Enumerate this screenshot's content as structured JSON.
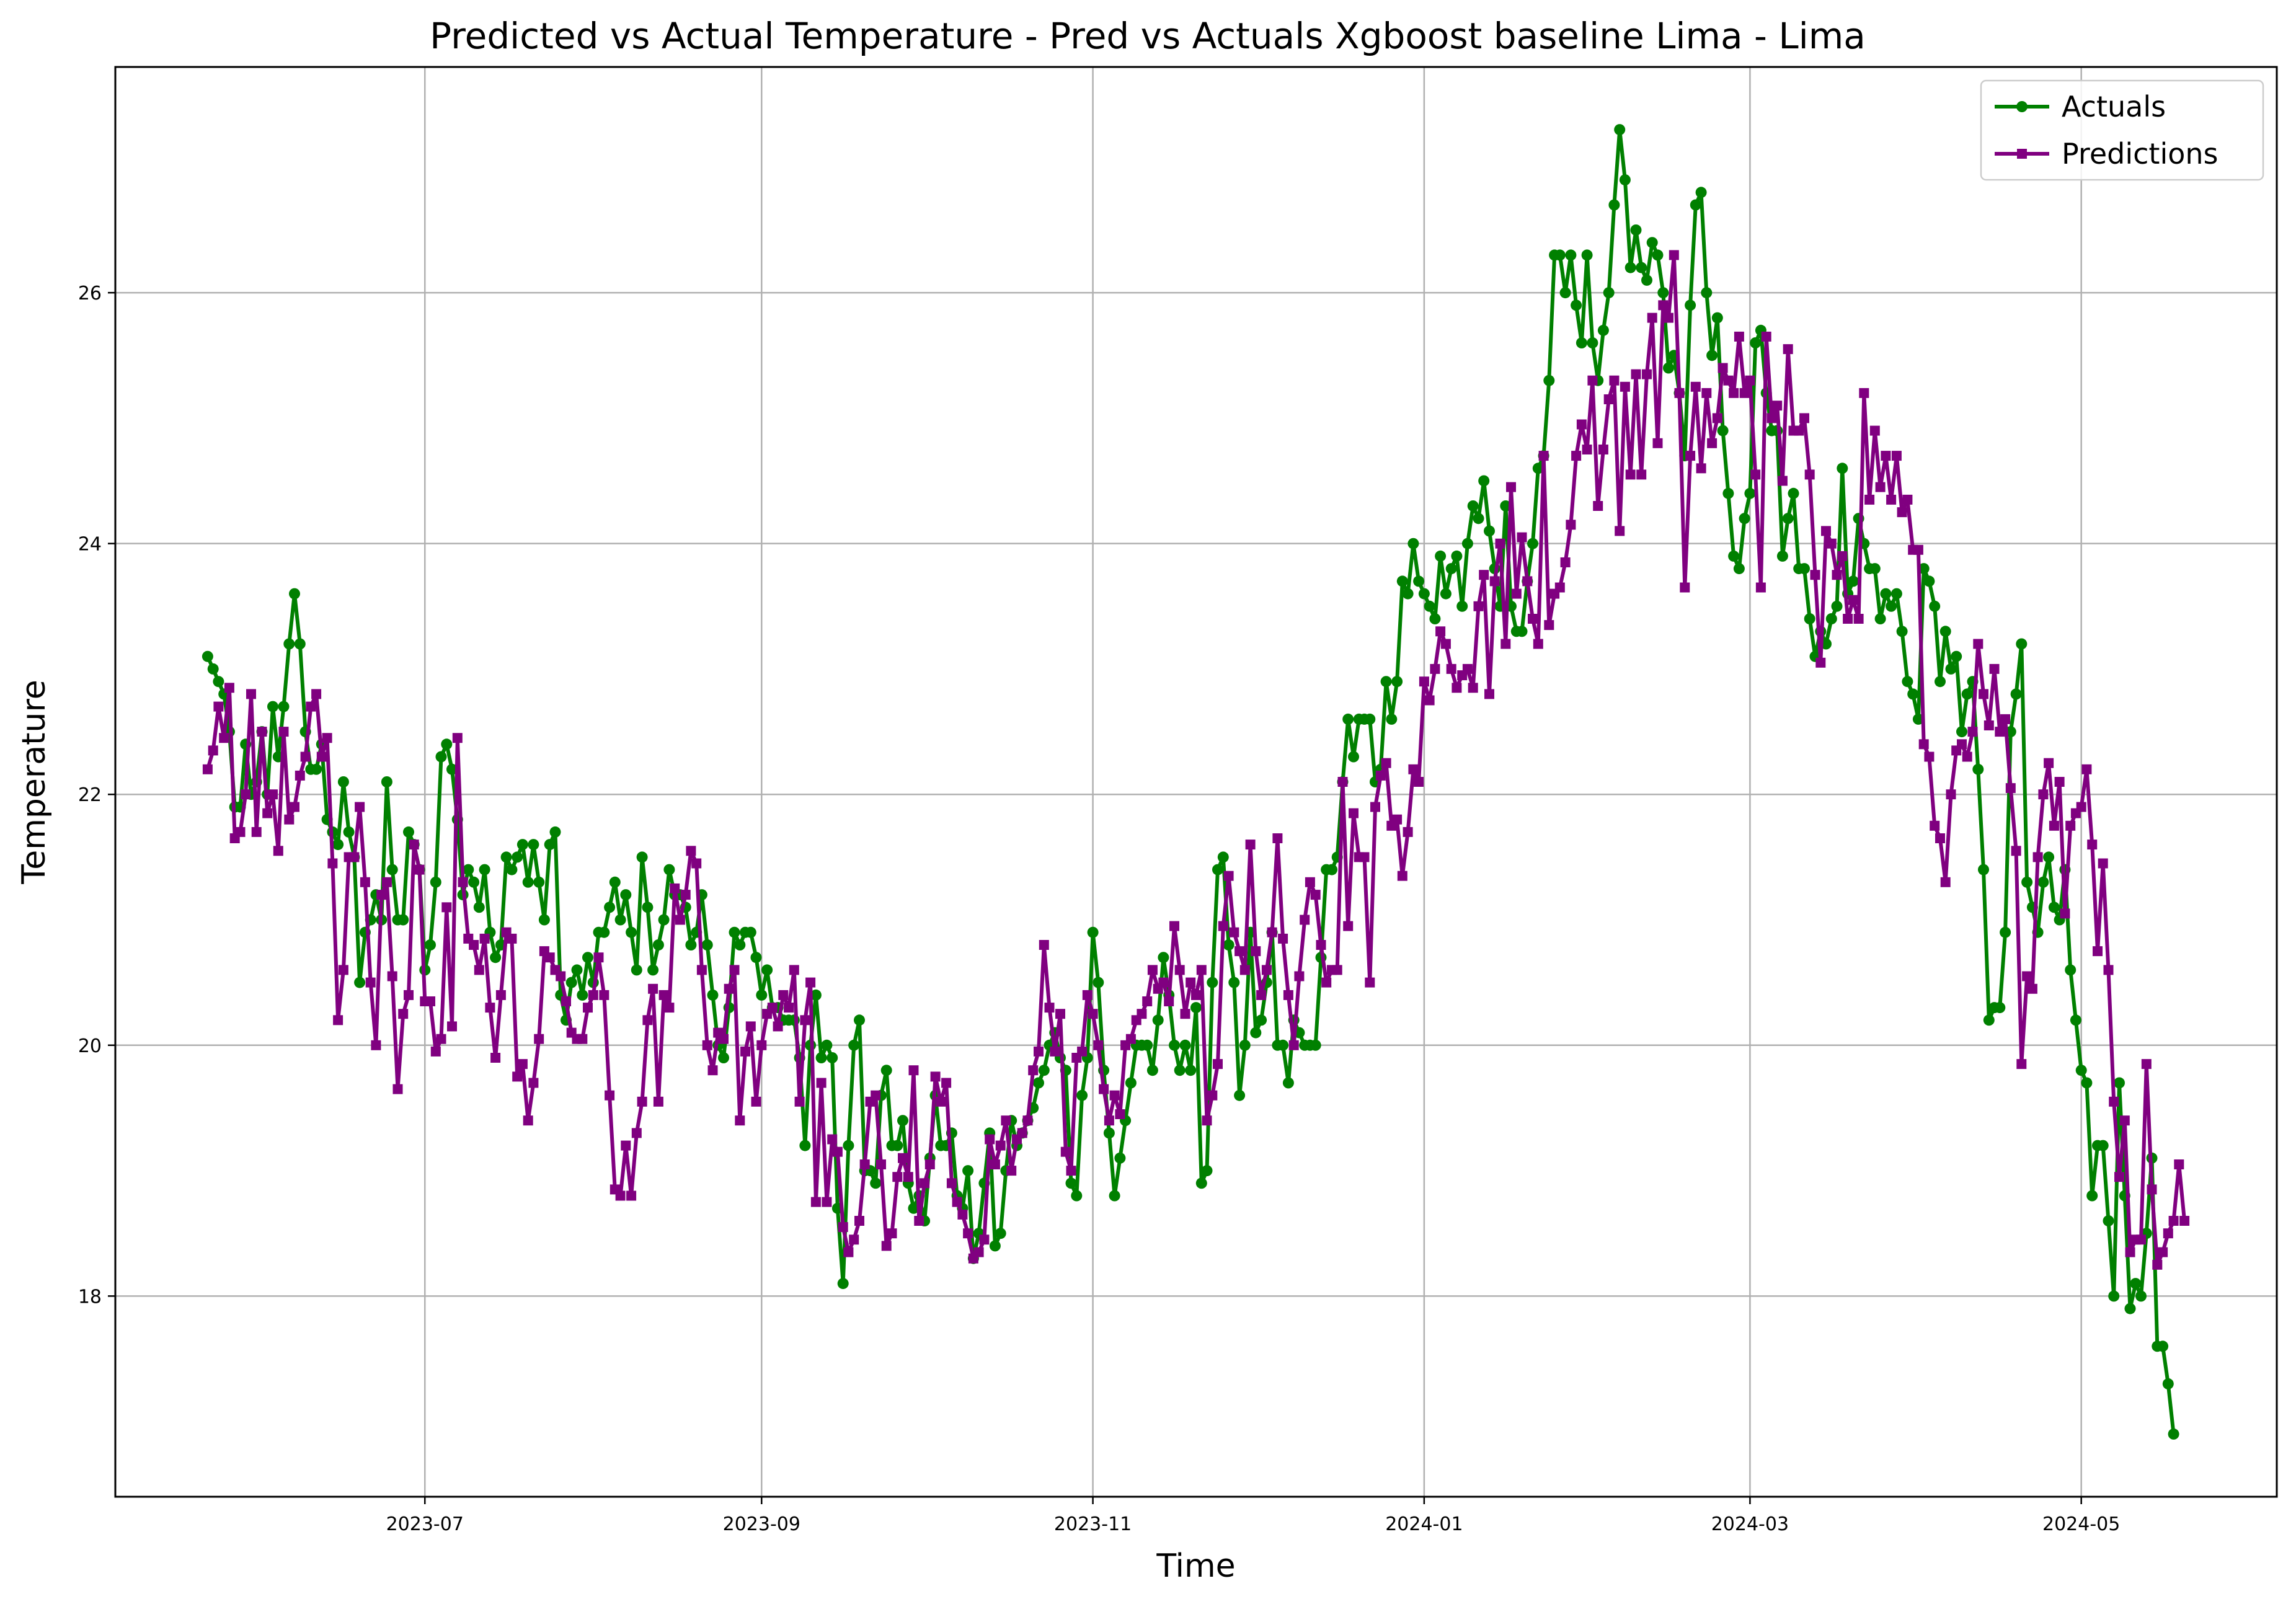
{
  "chart_data": {
    "type": "line",
    "title": "Predicted vs Actual Temperature - Pred vs Actuals Xgboost baseline Lima - Lima",
    "xlabel": "Time",
    "ylabel": "Temperature",
    "x_start": "2023-05-22",
    "x_end": "2024-05-20",
    "xlim": [
      "2023-05-05",
      "2024-06-06"
    ],
    "ylim": [
      16.4,
      27.8
    ],
    "x_ticks": [
      "2023-07",
      "2023-09",
      "2023-11",
      "2024-01",
      "2024-03",
      "2024-05"
    ],
    "y_ticks": [
      18,
      20,
      22,
      24,
      26
    ],
    "grid": true,
    "legend_position": "top-right",
    "series": [
      {
        "name": "Actuals",
        "color": "#008000",
        "marker": "circle",
        "values": [
          23.1,
          23.0,
          22.9,
          22.8,
          22.5,
          21.9,
          21.9,
          22.4,
          22.0,
          22.1,
          22.5,
          22.0,
          22.7,
          22.3,
          22.7,
          23.2,
          23.6,
          23.2,
          22.5,
          22.2,
          22.2,
          22.4,
          21.8,
          21.7,
          21.6,
          22.1,
          21.7,
          21.5,
          20.5,
          20.9,
          21.0,
          21.2,
          21.0,
          22.1,
          21.4,
          21.0,
          21.0,
          21.7,
          21.6,
          21.4,
          20.6,
          20.8,
          21.3,
          22.3,
          22.4,
          22.2,
          21.8,
          21.2,
          21.4,
          21.3,
          21.1,
          21.4,
          20.9,
          20.7,
          20.8,
          21.5,
          21.4,
          21.5,
          21.6,
          21.3,
          21.6,
          21.3,
          21.0,
          21.6,
          21.7,
          20.4,
          20.2,
          20.5,
          20.6,
          20.4,
          20.7,
          20.5,
          20.9,
          20.9,
          21.1,
          21.3,
          21.0,
          21.2,
          20.9,
          20.6,
          21.5,
          21.1,
          20.6,
          20.8,
          21.0,
          21.4,
          21.2,
          21.2,
          21.1,
          20.8,
          20.9,
          21.2,
          20.8,
          20.4,
          20.0,
          19.9,
          20.3,
          20.9,
          20.8,
          20.9,
          20.9,
          20.7,
          20.4,
          20.6,
          20.3,
          20.3,
          20.2,
          20.2,
          20.2,
          19.9,
          19.2,
          20.0,
          20.4,
          19.9,
          20.0,
          19.9,
          18.7,
          18.1,
          19.2,
          20.0,
          20.2,
          19.0,
          19.0,
          18.9,
          19.6,
          19.8,
          19.2,
          19.2,
          19.4,
          18.9,
          18.7,
          18.8,
          18.6,
          19.1,
          19.6,
          19.2,
          19.2,
          19.3,
          18.8,
          18.7,
          19.0,
          18.3,
          18.5,
          18.9,
          19.3,
          18.4,
          18.5,
          19.0,
          19.4,
          19.2,
          19.3,
          19.4,
          19.5,
          19.7,
          19.8,
          20.0,
          20.1,
          19.9,
          19.8,
          18.9,
          18.8,
          19.6,
          19.9,
          20.9,
          20.5,
          19.8,
          19.3,
          18.8,
          19.1,
          19.4,
          19.7,
          20.0,
          20.0,
          20.0,
          19.8,
          20.2,
          20.7,
          20.4,
          20.0,
          19.8,
          20.0,
          19.8,
          20.3,
          18.9,
          19.0,
          20.5,
          21.4,
          21.5,
          20.8,
          20.5,
          19.6,
          20.0,
          20.9,
          20.1,
          20.2,
          20.5,
          20.9,
          20.0,
          20.0,
          19.7,
          20.2,
          20.1,
          20.0,
          20.0,
          20.0,
          20.7,
          21.4,
          21.4,
          21.5,
          22.1,
          22.6,
          22.3,
          22.6,
          22.6,
          22.6,
          22.1,
          22.2,
          22.9,
          22.6,
          22.9,
          23.7,
          23.6,
          24.0,
          23.7,
          23.6,
          23.5,
          23.4,
          23.9,
          23.6,
          23.8,
          23.9,
          23.5,
          24.0,
          24.3,
          24.2,
          24.5,
          24.1,
          23.8,
          23.5,
          24.3,
          23.5,
          23.3,
          23.3,
          23.7,
          24.0,
          24.6,
          24.7,
          25.3,
          26.3,
          26.3,
          26.0,
          26.3,
          25.9,
          25.6,
          26.3,
          25.6,
          25.3,
          25.7,
          26.0,
          26.7,
          27.3,
          26.9,
          26.2,
          26.5,
          26.2,
          26.1,
          26.4,
          26.3,
          26.0,
          25.4,
          25.5,
          25.2,
          24.7,
          25.9,
          26.7,
          26.8,
          26.0,
          25.5,
          25.8,
          24.9,
          24.4,
          23.9,
          23.8,
          24.2,
          24.4,
          25.6,
          25.7,
          25.2,
          24.9,
          24.9,
          23.9,
          24.2,
          24.4,
          23.8,
          23.8,
          23.4,
          23.1,
          23.3,
          23.2,
          23.4,
          23.5,
          24.6,
          23.6,
          23.7,
          24.2,
          24.0,
          23.8,
          23.8,
          23.4,
          23.6,
          23.5,
          23.6,
          23.3,
          22.9,
          22.8,
          22.6,
          23.8,
          23.7,
          23.5,
          22.9,
          23.3,
          23.0,
          23.1,
          22.5,
          22.8,
          22.9,
          22.2,
          21.4,
          20.2,
          20.3,
          20.3,
          20.9,
          22.5,
          22.8,
          23.2,
          21.3,
          21.1,
          20.9,
          21.3,
          21.5,
          21.1,
          21.0,
          21.4,
          20.6,
          20.2,
          19.8,
          19.7,
          18.8,
          19.2,
          19.2,
          18.6,
          18.0,
          19.7,
          18.8,
          17.9,
          18.1,
          18.0,
          18.5,
          19.1,
          17.6,
          17.6,
          17.3,
          16.9
        ]
      },
      {
        "name": "Predictions",
        "color": "#800080",
        "marker": "square",
        "values": [
          22.2,
          22.35,
          22.7,
          22.45,
          22.85,
          21.65,
          21.7,
          22.0,
          22.8,
          21.7,
          22.5,
          21.85,
          22.0,
          21.55,
          22.5,
          21.8,
          21.9,
          22.15,
          22.3,
          22.7,
          22.8,
          22.3,
          22.45,
          21.45,
          20.2,
          20.6,
          21.5,
          21.5,
          21.9,
          21.3,
          20.5,
          20.0,
          21.2,
          21.3,
          20.55,
          19.65,
          20.25,
          20.4,
          21.6,
          21.4,
          20.35,
          20.35,
          19.95,
          20.05,
          21.1,
          20.15,
          22.45,
          21.3,
          20.85,
          20.8,
          20.6,
          20.85,
          20.3,
          19.9,
          20.4,
          20.9,
          20.85,
          19.75,
          19.85,
          19.4,
          19.7,
          20.05,
          20.75,
          20.7,
          20.6,
          20.55,
          20.35,
          20.1,
          20.05,
          20.05,
          20.3,
          20.4,
          20.7,
          20.4,
          19.6,
          18.85,
          18.8,
          19.2,
          18.8,
          19.3,
          19.55,
          20.2,
          20.45,
          19.55,
          20.4,
          20.3,
          21.25,
          21.0,
          21.2,
          21.55,
          21.45,
          20.6,
          20.0,
          19.8,
          20.1,
          20.05,
          20.45,
          20.6,
          19.4,
          19.95,
          20.15,
          19.55,
          20.0,
          20.25,
          20.3,
          20.15,
          20.4,
          20.3,
          20.6,
          19.55,
          20.2,
          20.5,
          18.75,
          19.7,
          18.75,
          19.25,
          19.15,
          18.55,
          18.35,
          18.45,
          18.6,
          19.05,
          19.55,
          19.6,
          19.05,
          18.4,
          18.5,
          18.95,
          19.1,
          18.95,
          19.8,
          18.6,
          18.9,
          19.05,
          19.75,
          19.55,
          19.7,
          18.9,
          18.75,
          18.65,
          18.5,
          18.3,
          18.35,
          18.45,
          19.25,
          19.05,
          19.2,
          19.4,
          19.0,
          19.25,
          19.3,
          19.4,
          19.8,
          19.95,
          20.8,
          20.3,
          19.95,
          20.25,
          19.15,
          19.0,
          19.9,
          19.95,
          20.4,
          20.25,
          20.0,
          19.65,
          19.4,
          19.6,
          19.45,
          20.0,
          20.05,
          20.2,
          20.25,
          20.35,
          20.6,
          20.45,
          20.5,
          20.35,
          20.95,
          20.6,
          20.25,
          20.5,
          20.4,
          20.6,
          19.4,
          19.6,
          19.85,
          20.95,
          21.35,
          20.9,
          20.75,
          20.6,
          21.6,
          20.75,
          20.4,
          20.6,
          20.9,
          21.65,
          20.85,
          20.4,
          20.0,
          20.55,
          21.0,
          21.3,
          21.2,
          20.8,
          20.5,
          20.6,
          20.6,
          22.1,
          20.95,
          21.85,
          21.5,
          21.5,
          20.5,
          21.9,
          22.15,
          22.25,
          21.75,
          21.8,
          21.35,
          21.7,
          22.2,
          22.1,
          22.9,
          22.75,
          23.0,
          23.3,
          23.2,
          23.0,
          22.85,
          22.95,
          23.0,
          22.85,
          23.5,
          23.75,
          22.8,
          23.7,
          24.0,
          23.2,
          24.45,
          23.6,
          24.05,
          23.7,
          23.4,
          23.2,
          24.7,
          23.35,
          23.6,
          23.65,
          23.85,
          24.15,
          24.7,
          24.95,
          24.75,
          25.3,
          24.3,
          24.75,
          25.15,
          25.3,
          24.1,
          25.25,
          24.55,
          25.35,
          24.55,
          25.35,
          25.8,
          24.8,
          25.9,
          25.8,
          26.3,
          25.2,
          23.65,
          24.7,
          25.25,
          24.6,
          25.2,
          24.8,
          25.0,
          25.4,
          25.3,
          25.2,
          25.65,
          25.2,
          25.3,
          24.55,
          23.65,
          25.65,
          25.0,
          25.1,
          24.5,
          25.55,
          24.9,
          24.9,
          25.0,
          24.55,
          23.75,
          23.05,
          24.1,
          24.0,
          23.75,
          23.9,
          23.4,
          23.55,
          23.4,
          25.2,
          24.35,
          24.9,
          24.45,
          24.7,
          24.35,
          24.7,
          24.25,
          24.35,
          23.95,
          23.95,
          22.4,
          22.3,
          21.75,
          21.65,
          21.3,
          22.0,
          22.35,
          22.4,
          22.3,
          22.5,
          23.2,
          22.8,
          22.55,
          23.0,
          22.5,
          22.6,
          22.05,
          21.55,
          19.85,
          20.55,
          20.45,
          21.5,
          22.0,
          22.25,
          21.75,
          22.1,
          21.05,
          21.75,
          21.85,
          21.9,
          22.2,
          21.6,
          20.75,
          21.45,
          20.6,
          19.55,
          18.95,
          19.4,
          18.35,
          18.45,
          18.45,
          19.85,
          18.85,
          18.25,
          18.35,
          18.5,
          18.6,
          19.05,
          18.6
        ]
      }
    ]
  }
}
